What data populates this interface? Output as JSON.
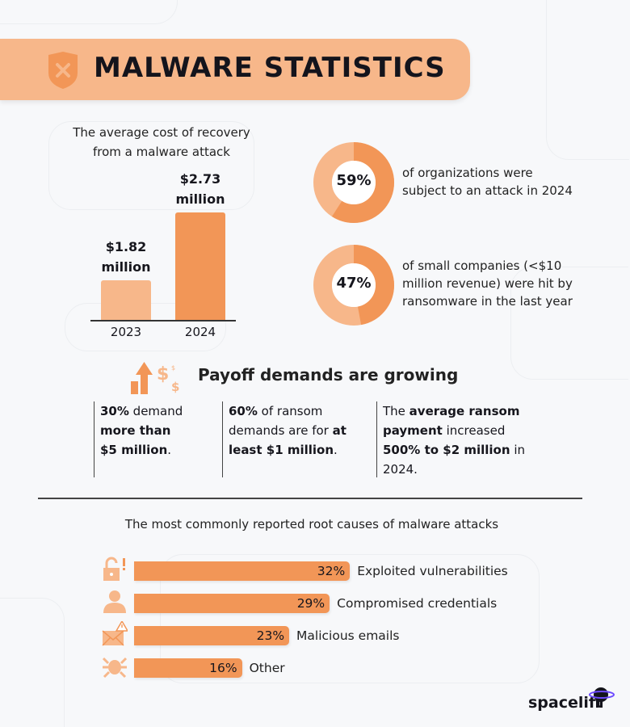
{
  "title": "MALWARE STATISTICS",
  "colors": {
    "accent": "#f29657",
    "light": "#f7b78a",
    "text": "#16161d"
  },
  "recovery": {
    "subtitle_line1": "The average cost of recovery",
    "subtitle_line2": "from a malware attack",
    "bars": [
      {
        "year": "2023",
        "value_line1": "$1.82",
        "value_line2": "million",
        "value": 1.82
      },
      {
        "year": "2024",
        "value_line1": "$2.73",
        "value_line2": "million",
        "value": 2.73
      }
    ]
  },
  "donuts": [
    {
      "pct": "59%",
      "value": 59,
      "line1": "of organizations were",
      "line2": "subject to an attack in 2024",
      "line3": ""
    },
    {
      "pct": "47%",
      "value": 47,
      "line1": "of small companies (<$10",
      "line2": "million revenue) were hit by",
      "line3": "ransomware in the last year"
    }
  ],
  "payoff": {
    "heading": "Payoff demands are growing",
    "icon": "growth-arrow-dollar-icon",
    "cols": [
      [
        {
          "t": "30%",
          "b": true
        },
        {
          "t": " demand ",
          "b": false
        },
        {
          "t": "more than $5 million",
          "b": true
        },
        {
          "t": ".",
          "b": false
        }
      ],
      [
        {
          "t": "60%",
          "b": true
        },
        {
          "t": " of ransom demands are for ",
          "b": false
        },
        {
          "t": "at least $1 million",
          "b": true
        },
        {
          "t": ".",
          "b": false
        }
      ],
      [
        {
          "t": "The ",
          "b": false
        },
        {
          "t": "average ransom payment",
          "b": true
        },
        {
          "t": " increased ",
          "b": false
        },
        {
          "t": "500% to $2 million",
          "b": true
        },
        {
          "t": " in 2024.",
          "b": false
        }
      ]
    ]
  },
  "causes": {
    "heading": "The most commonly reported root causes of malware attacks",
    "items": [
      {
        "pct": "32%",
        "value": 32,
        "label": "Exploited vulnerabilities",
        "icon": "unlocked-padlock-icon"
      },
      {
        "pct": "29%",
        "value": 29,
        "label": "Compromised credentials",
        "icon": "user-icon"
      },
      {
        "pct": "23%",
        "value": 23,
        "label": "Malicious emails",
        "icon": "envelope-warning-icon"
      },
      {
        "pct": "16%",
        "value": 16,
        "label": "Other",
        "icon": "bug-icon"
      }
    ]
  },
  "brand": "spacelift"
}
